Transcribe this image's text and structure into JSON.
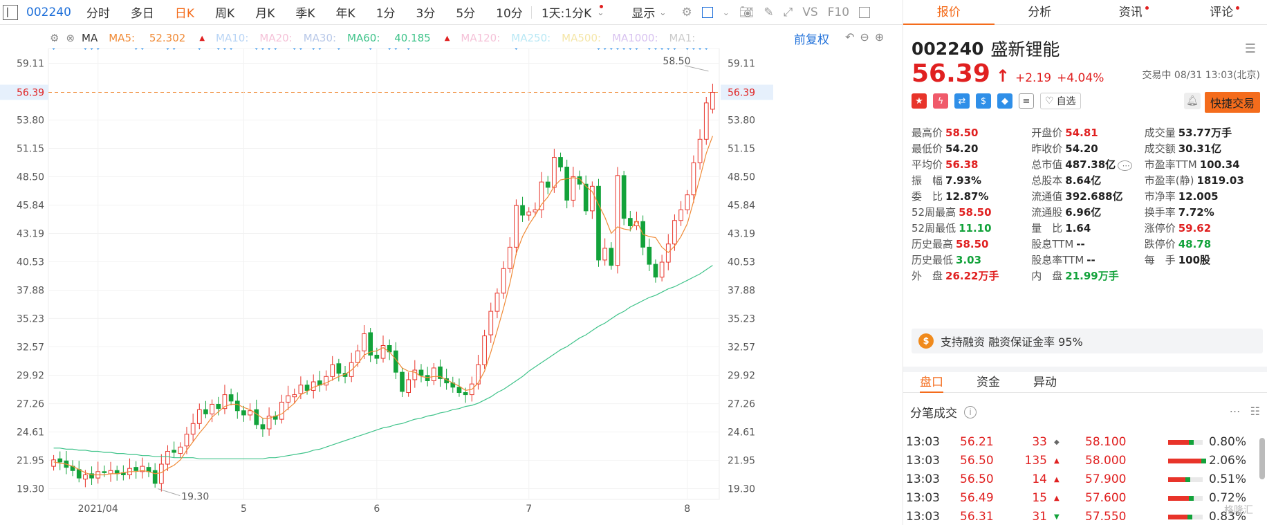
{
  "toolbar": {
    "code": "002240",
    "periods": [
      "分时",
      "多日",
      "日K",
      "周K",
      "月K",
      "季K",
      "年K",
      "1分",
      "3分",
      "5分",
      "10分"
    ],
    "active_period": "日K",
    "range_select": "1天:1分K",
    "display_label": "显示",
    "vs_label": "VS",
    "f10_label": "F10"
  },
  "ma_legend": {
    "type_label": "MA",
    "ma5_label": "MA5:",
    "ma5_value": "52.302",
    "ma10": "MA10:",
    "ma20": "MA20:",
    "ma30": "MA30:",
    "ma60_label": "MA60:",
    "ma60_value": "40.185",
    "ma120": "MA120:",
    "ma250": "MA250:",
    "ma500": "MA500:",
    "ma1000": "MA1000:",
    "ma_more": "MA1:",
    "adjust_label": "前复权"
  },
  "chart_data": {
    "type": "candlestick",
    "y_ticks": [
      "59.11",
      "56.39",
      "53.80",
      "51.15",
      "48.50",
      "45.84",
      "43.19",
      "40.53",
      "37.88",
      "35.23",
      "32.57",
      "29.92",
      "27.26",
      "24.61",
      "21.95",
      "19.30"
    ],
    "y_min": 18.3,
    "y_max": 60.5,
    "x_labels": [
      "2021/04",
      "5",
      "6",
      "7",
      "8"
    ],
    "x_label_day_index": [
      7,
      30,
      51,
      75,
      100
    ],
    "last_price": "56.39",
    "high_annotation": "58.50",
    "low_annotation": "19.30",
    "closes": [
      22.0,
      21.8,
      21.3,
      21.0,
      20.3,
      20.6,
      20.3,
      20.9,
      20.8,
      21.0,
      20.7,
      20.6,
      21.2,
      21.0,
      21.4,
      20.9,
      19.8,
      21.6,
      22.8,
      22.7,
      23.2,
      24.4,
      25.4,
      26.7,
      26.3,
      27.2,
      26.8,
      28.1,
      27.5,
      26.6,
      26.2,
      26.6,
      25.3,
      24.9,
      26.1,
      25.8,
      27.4,
      28.0,
      28.1,
      29.0,
      28.5,
      29.3,
      29.0,
      29.8,
      30.9,
      30.1,
      29.8,
      31.1,
      32.2,
      33.8,
      31.8,
      31.5,
      32.7,
      32.1,
      30.2,
      28.4,
      29.5,
      30.4,
      29.9,
      29.4,
      30.6,
      29.6,
      29.2,
      28.8,
      28.3,
      28.1,
      29.1,
      30.9,
      33.6,
      35.9,
      37.6,
      39.9,
      41.9,
      45.8,
      44.9,
      45.2,
      45.4,
      48.0,
      47.5,
      50.3,
      49.4,
      46.3,
      48.5,
      47.8,
      45.3,
      47.6,
      40.7,
      41.8,
      40.2,
      48.6,
      44.6,
      43.9,
      44.3,
      41.9,
      40.3,
      39.1,
      40.5,
      42.2,
      44.4,
      45.4,
      46.8,
      49.8,
      52.0,
      55.4,
      56.39
    ],
    "opens": [
      21.4,
      22.1,
      21.9,
      21.4,
      21.1,
      20.2,
      20.7,
      20.3,
      20.9,
      20.7,
      21.0,
      20.8,
      20.6,
      21.3,
      20.9,
      21.3,
      21.0,
      19.8,
      21.6,
      22.9,
      22.6,
      23.3,
      24.4,
      25.4,
      26.7,
      26.3,
      27.2,
      26.8,
      28.1,
      27.5,
      26.6,
      26.2,
      26.7,
      25.3,
      24.9,
      26.1,
      25.8,
      27.4,
      27.9,
      28.2,
      29.0,
      28.5,
      29.4,
      29.0,
      29.8,
      31.0,
      30.1,
      29.8,
      31.1,
      32.2,
      33.9,
      31.8,
      31.5,
      32.7,
      32.2,
      30.2,
      28.3,
      29.5,
      30.4,
      29.9,
      29.4,
      30.7,
      29.6,
      29.2,
      28.8,
      28.3,
      28.1,
      29.1,
      30.9,
      33.7,
      35.9,
      37.6,
      39.9,
      41.9,
      45.8,
      44.9,
      45.2,
      45.4,
      48.0,
      47.5,
      50.3,
      49.4,
      46.3,
      48.5,
      47.8,
      45.3,
      47.6,
      40.7,
      41.8,
      40.2,
      48.6,
      44.6,
      43.9,
      44.3,
      41.9,
      40.3,
      39.1,
      40.5,
      42.2,
      44.4,
      45.4,
      46.8,
      49.8,
      52.0,
      54.81
    ],
    "ma_fast": [
      21.8,
      21.7,
      21.6,
      21.4,
      21.1,
      20.8,
      20.6,
      20.6,
      20.6,
      20.7,
      20.7,
      20.8,
      20.9,
      20.9,
      21.0,
      20.9,
      20.7,
      20.8,
      21.2,
      21.5,
      22.0,
      22.9,
      23.7,
      24.5,
      25.2,
      26.0,
      26.5,
      27.0,
      27.2,
      27.2,
      26.9,
      26.7,
      26.3,
      25.9,
      25.9,
      26.1,
      26.3,
      26.8,
      27.3,
      28.1,
      28.4,
      28.8,
      29.0,
      29.2,
      29.5,
      29.8,
      30.0,
      30.4,
      31.0,
      31.8,
      32.1,
      32.2,
      32.5,
      32.1,
      31.4,
      30.6,
      30.3,
      30.2,
      29.8,
      29.7,
      29.8,
      29.8,
      29.5,
      29.2,
      28.9,
      28.5,
      28.6,
      29.2,
      30.3,
      32.1,
      34.1,
      36.2,
      38.5,
      41.3,
      42.9,
      44.0,
      44.9,
      45.9,
      46.6,
      47.6,
      48.2,
      48.3,
      48.4,
      48.3,
      47.6,
      47.1,
      45.9,
      44.7,
      43.2,
      43.8,
      43.6,
      43.5,
      44.4,
      43.1,
      42.9,
      42.8,
      41.9,
      41.4,
      42.0,
      42.9,
      44.1,
      46.2,
      48.4,
      50.7,
      52.3
    ],
    "ma_slow": [
      23.1,
      23.1,
      23.0,
      23.0,
      22.9,
      22.9,
      22.8,
      22.8,
      22.7,
      22.7,
      22.6,
      22.6,
      22.5,
      22.5,
      22.4,
      22.4,
      22.3,
      22.3,
      22.3,
      22.2,
      22.2,
      22.2,
      22.2,
      22.1,
      22.1,
      22.1,
      22.1,
      22.1,
      22.1,
      22.1,
      22.1,
      22.1,
      22.1,
      22.1,
      22.2,
      22.2,
      22.3,
      22.4,
      22.5,
      22.6,
      22.7,
      22.9,
      23.0,
      23.2,
      23.4,
      23.6,
      23.8,
      24.0,
      24.2,
      24.4,
      24.6,
      24.8,
      25.0,
      25.1,
      25.3,
      25.4,
      25.6,
      25.8,
      25.9,
      26.1,
      26.2,
      26.4,
      26.5,
      26.7,
      26.8,
      27.0,
      27.1,
      27.3,
      27.6,
      27.9,
      28.3,
      28.6,
      29.0,
      29.4,
      29.8,
      30.3,
      30.7,
      31.1,
      31.5,
      31.9,
      32.3,
      32.6,
      33.0,
      33.4,
      33.7,
      34.1,
      34.5,
      34.8,
      35.2,
      35.6,
      35.9,
      36.3,
      36.6,
      36.9,
      37.2,
      37.4,
      37.7,
      38.0,
      38.2,
      38.5,
      38.8,
      39.1,
      39.4,
      39.8,
      40.2
    ]
  },
  "panel": {
    "tabs": [
      "报价",
      "分析",
      "资讯",
      "评论"
    ],
    "active_tab": "报价",
    "code": "002240",
    "name": "盛新锂能",
    "price": "56.39",
    "change": "+2.19",
    "change_pct": "+4.04%",
    "status": "交易中 08/31 13:03(北京)",
    "zixuan": "自选",
    "quick_trade": "快捷交易",
    "stats": [
      [
        {
          "l": "最高价",
          "v": "58.50",
          "c": "red"
        },
        {
          "l": "开盘价",
          "v": "54.81",
          "c": "red"
        },
        {
          "l": "成交量",
          "v": "53.77万手",
          "c": ""
        }
      ],
      [
        {
          "l": "最低价",
          "v": "54.20",
          "c": ""
        },
        {
          "l": "昨收价",
          "v": "54.20",
          "c": ""
        },
        {
          "l": "成交额",
          "v": "30.31亿",
          "c": ""
        }
      ],
      [
        {
          "l": "平均价",
          "v": "56.38",
          "c": "red"
        },
        {
          "l": "总市值",
          "v": "487.38亿",
          "c": ""
        },
        {
          "l": "市盈率TTM",
          "v": "100.34",
          "c": ""
        }
      ],
      [
        {
          "l": "振　幅",
          "v": "7.93%",
          "c": ""
        },
        {
          "l": "总股本",
          "v": "8.64亿",
          "c": ""
        },
        {
          "l": "市盈率(静)",
          "v": "1819.03",
          "c": ""
        }
      ],
      [
        {
          "l": "委　比",
          "v": "12.87%",
          "c": ""
        },
        {
          "l": "流通值",
          "v": "392.688亿",
          "c": ""
        },
        {
          "l": "市净率",
          "v": "12.005",
          "c": ""
        }
      ],
      [
        {
          "l": "52周最高",
          "v": "58.50",
          "c": "red"
        },
        {
          "l": "流通股",
          "v": "6.96亿",
          "c": ""
        },
        {
          "l": "换手率",
          "v": "7.72%",
          "c": ""
        }
      ],
      [
        {
          "l": "52周最低",
          "v": "11.10",
          "c": "green"
        },
        {
          "l": "量　比",
          "v": "1.64",
          "c": ""
        },
        {
          "l": "涨停价",
          "v": "59.62",
          "c": "red"
        }
      ],
      [
        {
          "l": "历史最高",
          "v": "58.50",
          "c": "red"
        },
        {
          "l": "股息TTM",
          "v": "--",
          "c": ""
        },
        {
          "l": "跌停价",
          "v": "48.78",
          "c": "green"
        }
      ],
      [
        {
          "l": "历史最低",
          "v": "3.03",
          "c": "green"
        },
        {
          "l": "股息率TTM",
          "v": "--",
          "c": ""
        },
        {
          "l": "每　手",
          "v": "100股",
          "c": ""
        }
      ],
      [
        {
          "l": "外　盘",
          "v": "26.22万手",
          "c": "red"
        },
        {
          "l": "内　盘",
          "v": "21.99万手",
          "c": "green"
        },
        {
          "l": "",
          "v": "",
          "c": ""
        }
      ]
    ],
    "finance_text": "支持融资 融资保证金率 95%",
    "sub_tabs": [
      "盘口",
      "资金",
      "异动"
    ],
    "active_sub_tab": "盘口",
    "ticks_title": "分笔成交",
    "ticks": [
      {
        "time": "13:03",
        "price": "56.21",
        "vol": "33",
        "dir": "◆",
        "ask": "58.100",
        "pct": "0.80%",
        "red": 0.6
      },
      {
        "time": "13:03",
        "price": "56.50",
        "vol": "135",
        "dir": "▲",
        "ask": "58.000",
        "pct": "2.06%",
        "red": 0.95
      },
      {
        "time": "13:03",
        "price": "56.50",
        "vol": "14",
        "dir": "▲",
        "ask": "57.900",
        "pct": "0.51%",
        "red": 0.5
      },
      {
        "time": "13:03",
        "price": "56.49",
        "vol": "15",
        "dir": "▲",
        "ask": "57.600",
        "pct": "0.72%",
        "red": 0.6
      },
      {
        "time": "13:03",
        "price": "56.31",
        "vol": "31",
        "dir": "▼",
        "ask": "57.550",
        "pct": "0.83%",
        "red": 0.55
      }
    ],
    "watermark": "格隆汇"
  },
  "colors": {
    "up": "#e8342a",
    "down": "#12a23a",
    "accent": "#f46c1c",
    "ma_fast": "#f08a36",
    "ma_slow": "#3fc38a",
    "link": "#1e6fd9"
  }
}
